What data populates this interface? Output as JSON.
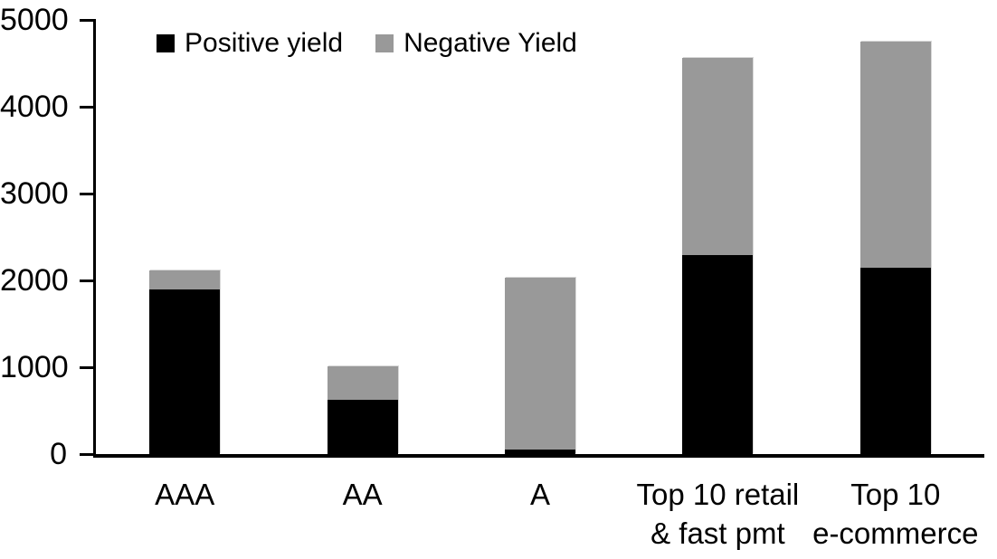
{
  "chart_data": {
    "type": "bar",
    "stacked": true,
    "title": "",
    "xlabel": "",
    "ylabel": "",
    "categories": [
      "AAA",
      "AA",
      "A",
      "Top 10 retail\n& fast pmt",
      "Top 10\ne-commerce"
    ],
    "series": [
      {
        "name": "Positive yield",
        "color": "#000000",
        "values": [
          1900,
          620,
          50,
          2290,
          2150
        ]
      },
      {
        "name": "Negative Yield",
        "color": "#999999",
        "values": [
          220,
          390,
          1980,
          2270,
          2600
        ]
      }
    ],
    "ylim": [
      0,
      5000
    ],
    "yticks": [
      0,
      1000,
      2000,
      3000,
      4000,
      5000
    ],
    "grid": false,
    "legend_position": "top-left-inside",
    "axis_color": "#000000",
    "background_color": "#ffffff"
  }
}
